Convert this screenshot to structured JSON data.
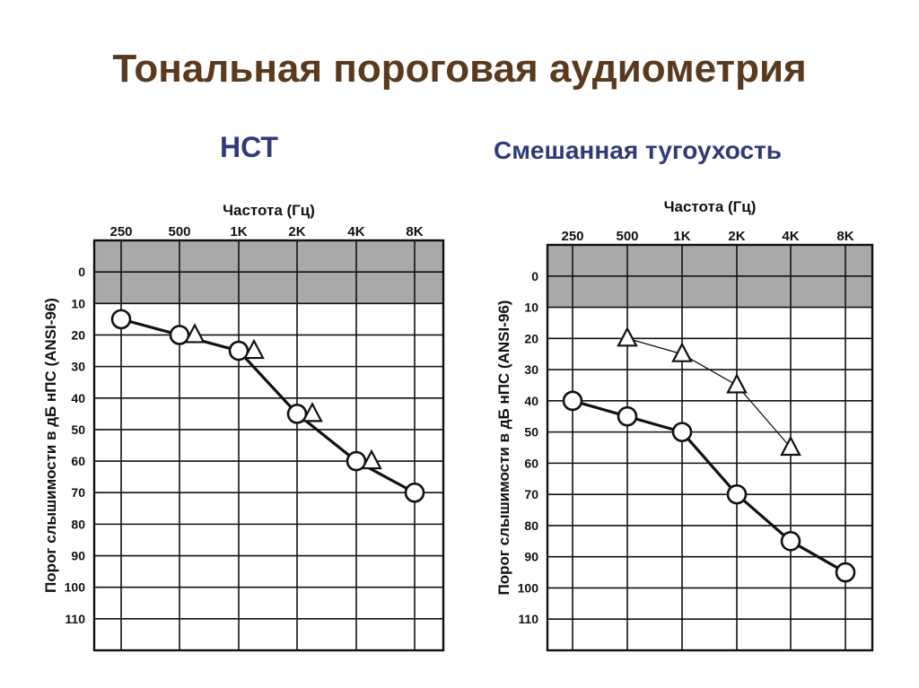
{
  "page": {
    "title": "Тональная пороговая аудиометрия",
    "subtitles": [
      "НСТ",
      "Смешанная тугоухость"
    ],
    "colors": {
      "title": "#5a3a1e",
      "subtitle": "#2e3b78",
      "shade": "#a9a9a9",
      "ink": "#111111"
    }
  },
  "chart_data": [
    {
      "type": "line",
      "title": "НСТ",
      "xlabel": "Частота (Гц)",
      "ylabel": "Порог слышимости в дБ нПС (ANSI-96)",
      "categories": [
        "250",
        "500",
        "1K",
        "2K",
        "4K",
        "8K"
      ],
      "y_ticks": [
        "0",
        "10",
        "20",
        "30",
        "40",
        "50",
        "60",
        "70",
        "80",
        "90",
        "100",
        "110"
      ],
      "ylim": [
        -10,
        120
      ],
      "y_inverted": true,
      "shaded_band": [
        -10,
        10
      ],
      "grid": true,
      "series": [
        {
          "marker": "circle",
          "line": "thick",
          "values": [
            15,
            20,
            25,
            45,
            60,
            70
          ]
        },
        {
          "marker": "triangle",
          "line": "none",
          "values": [
            null,
            20,
            25,
            45,
            60,
            null
          ]
        }
      ]
    },
    {
      "type": "line",
      "title": "Смешанная тугоухость",
      "xlabel": "Частота (Гц)",
      "ylabel": "Порог слышимости в дБ нПС (ANSI-96)",
      "categories": [
        "250",
        "500",
        "1K",
        "2K",
        "4K",
        "8K"
      ],
      "y_ticks": [
        "0",
        "10",
        "20",
        "30",
        "40",
        "50",
        "60",
        "70",
        "80",
        "90",
        "100",
        "110"
      ],
      "ylim": [
        -10,
        120
      ],
      "y_inverted": true,
      "shaded_band": [
        -10,
        10
      ],
      "grid": true,
      "series": [
        {
          "marker": "circle",
          "line": "thick",
          "values": [
            40,
            45,
            50,
            70,
            85,
            95
          ]
        },
        {
          "marker": "triangle",
          "line": "thin",
          "values": [
            null,
            20,
            25,
            35,
            55,
            null
          ]
        }
      ]
    }
  ]
}
